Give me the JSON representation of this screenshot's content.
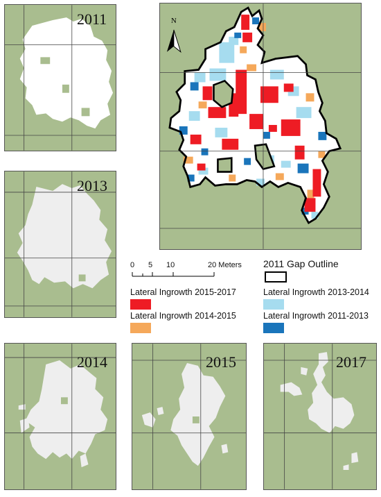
{
  "panels": {
    "y2011": "2011",
    "y2013": "2013",
    "y2014": "2014",
    "y2015": "2015",
    "y2017": "2017"
  },
  "north_label": "N",
  "scale_bar": {
    "ticks": [
      "0",
      "5",
      "10",
      "20 Meters"
    ]
  },
  "legend": {
    "outline_label": "2011 Gap Outline",
    "items": [
      {
        "label": "Lateral Ingrowth 2015-2017",
        "color": "#ee1c24"
      },
      {
        "label": "Lateral Ingrowth 2014-2015",
        "color": "#f5a85a"
      },
      {
        "label": "Lateral Ingrowth 2013-2014",
        "color": "#a6dcef"
      },
      {
        "label": "Lateral Ingrowth 2011-2013",
        "color": "#1a75bb"
      }
    ]
  },
  "colors": {
    "canopy": "#a9bd8f",
    "gap": "#ffffff",
    "gap_later": "#eeeeee",
    "grid": "#444444",
    "outline": "#000000"
  }
}
